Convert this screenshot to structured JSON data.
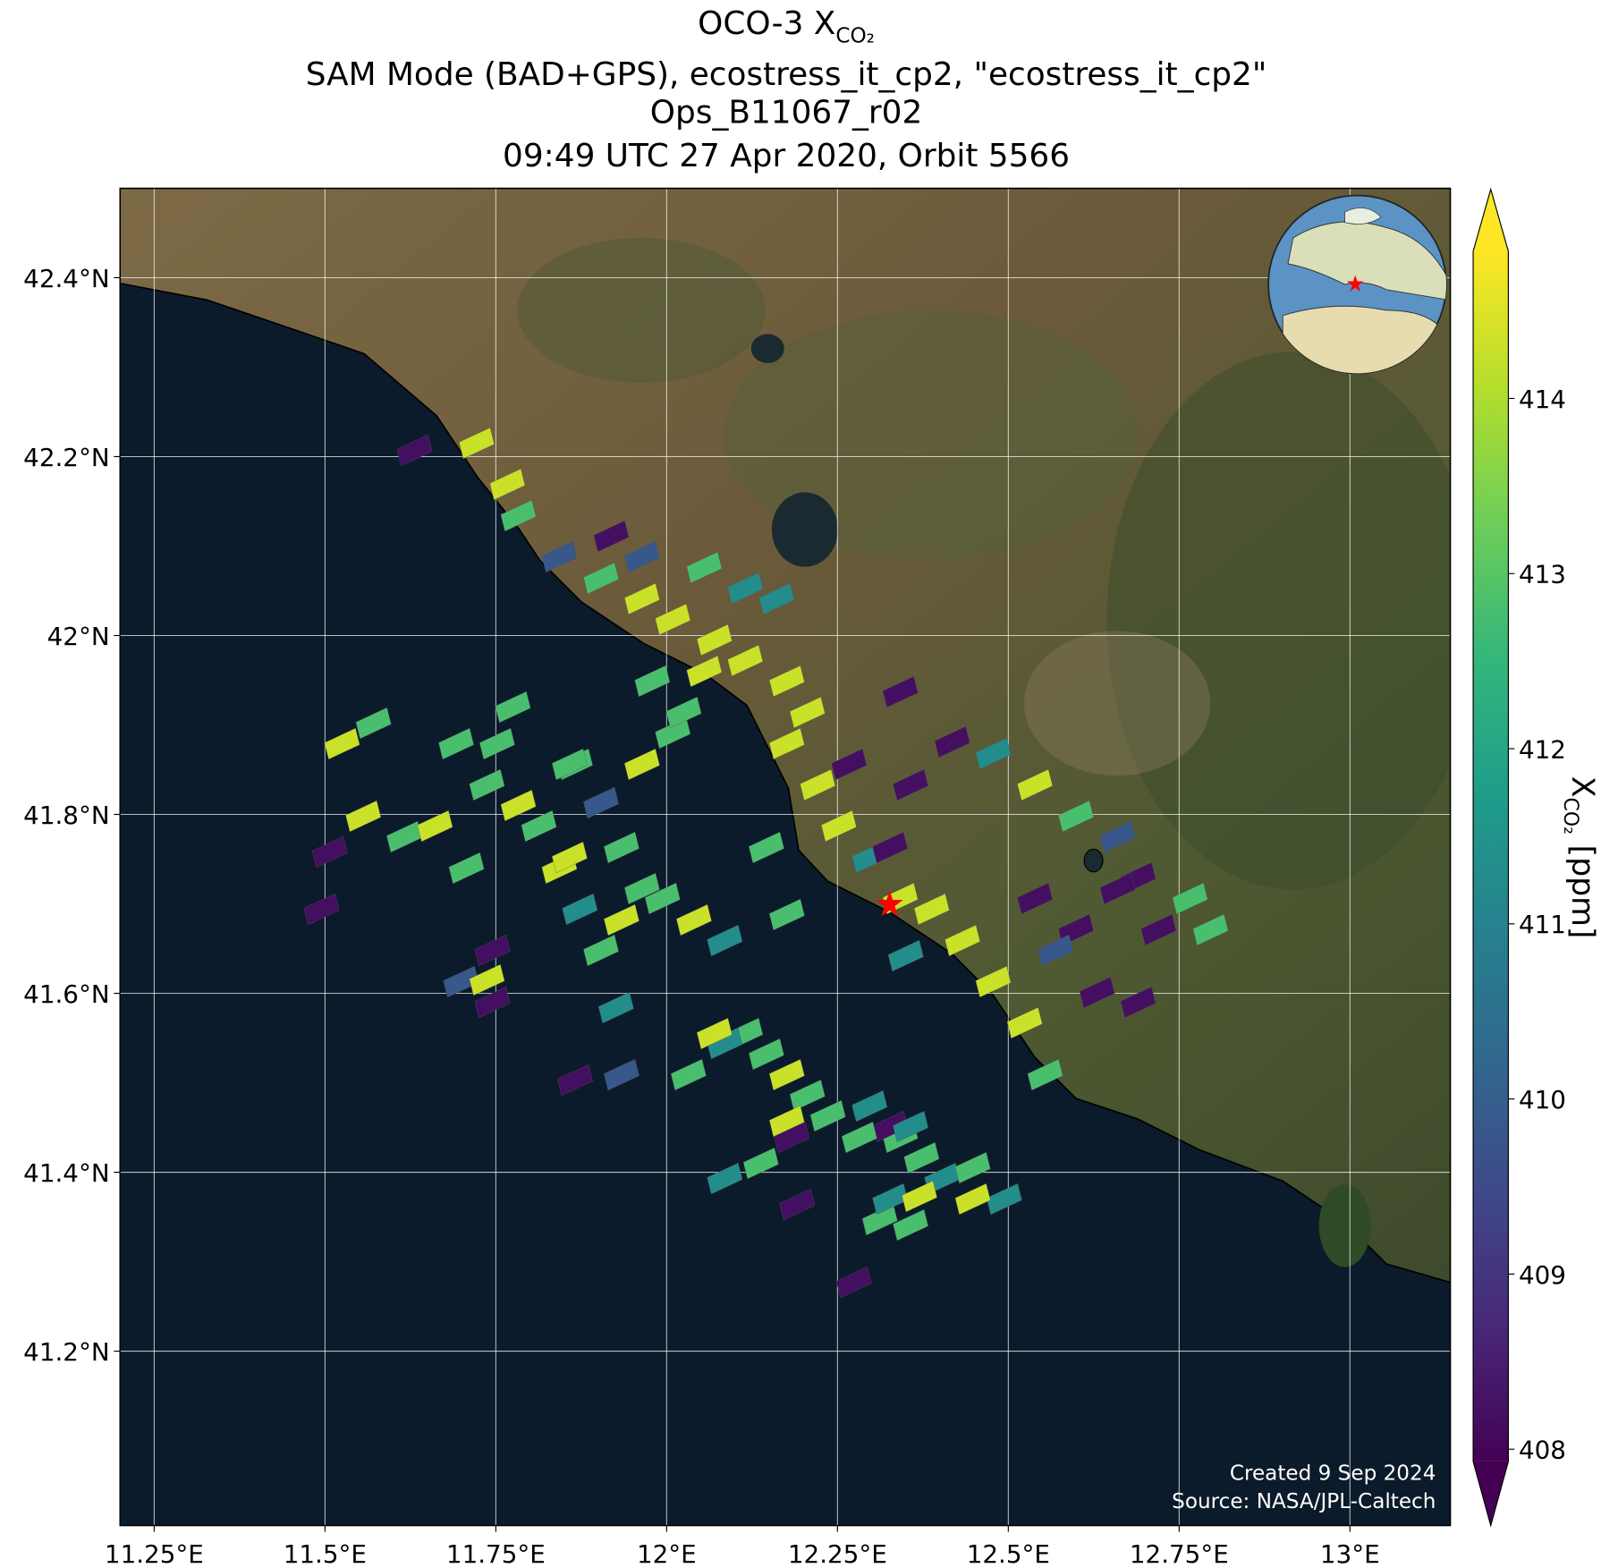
{
  "map": {
    "title": {
      "text": "OCO-3 X",
      "sub": "CO₂"
    },
    "subtitles": [
      "SAM Mode (BAD+GPS), ecostress_it_cp2, \"ecostress_it_cp2\"",
      "Ops_B11067_r02",
      "09:49 UTC 27 Apr 2020, Orbit 5566"
    ],
    "xlim": [
      11.2,
      13.147
    ],
    "ylim": [
      41.005,
      42.5
    ],
    "xticks": [
      {
        "value": 11.25,
        "label": "11.25°E"
      },
      {
        "value": 11.5,
        "label": "11.5°E"
      },
      {
        "value": 11.75,
        "label": "11.75°E"
      },
      {
        "value": 12,
        "label": "12°E"
      },
      {
        "value": 12.25,
        "label": "12.25°E"
      },
      {
        "value": 12.5,
        "label": "12.5°E"
      },
      {
        "value": 12.75,
        "label": "12.75°E"
      },
      {
        "value": 13,
        "label": "13°E"
      }
    ],
    "yticks": [
      {
        "value": 41.2,
        "label": "41.2°N"
      },
      {
        "value": 41.4,
        "label": "41.4°N"
      },
      {
        "value": 41.6,
        "label": "41.6°N"
      },
      {
        "value": 41.8,
        "label": "41.8°N"
      },
      {
        "value": 42,
        "label": "42°N"
      },
      {
        "value": 42.2,
        "label": "42.2°N"
      },
      {
        "value": 42.4,
        "label": "42.4°N"
      }
    ],
    "grid": true,
    "colorbar": {
      "label": "X",
      "label_sub": "CO₂",
      "label_unit": "[ppm]",
      "clim": [
        407.93,
        414.84
      ],
      "ticks": [
        408,
        409,
        410,
        411,
        412,
        413,
        414
      ],
      "extend": "both",
      "colormap": "viridis"
    },
    "credits": [
      "Created 9 Sep 2024",
      "Source: NASA/JPL-Caltech"
    ],
    "soundings": [
      [
        11.631,
        42.207,
        408.2
      ],
      [
        11.722,
        42.215,
        414.3
      ],
      [
        11.767,
        42.169,
        414.3
      ],
      [
        11.783,
        42.134,
        412.8
      ],
      [
        11.843,
        42.088,
        409.8
      ],
      [
        11.904,
        42.064,
        412.8
      ],
      [
        11.964,
        42.041,
        414.3
      ],
      [
        12.009,
        42.018,
        414.3
      ],
      [
        12.07,
        41.995,
        414.3
      ],
      [
        12.115,
        41.972,
        414.3
      ],
      [
        12.176,
        41.949,
        414.3
      ],
      [
        12.206,
        41.914,
        414.3
      ],
      [
        12.176,
        41.879,
        414.3
      ],
      [
        12.221,
        41.833,
        414.3
      ],
      [
        12.252,
        41.787,
        414.3
      ],
      [
        12.297,
        41.752,
        411.3
      ],
      [
        12.342,
        41.706,
        414.3
      ],
      [
        12.388,
        41.694,
        414.3
      ],
      [
        12.433,
        41.659,
        414.3
      ],
      [
        12.478,
        41.613,
        414.3
      ],
      [
        12.524,
        41.567,
        414.3
      ],
      [
        12.554,
        41.509,
        412.8
      ],
      [
        11.919,
        42.111,
        408.2
      ],
      [
        11.964,
        42.088,
        409.8
      ],
      [
        12.055,
        42.076,
        412.8
      ],
      [
        12.115,
        42.053,
        411.3
      ],
      [
        12.161,
        42.041,
        411.3
      ],
      [
        12.342,
        41.937,
        408.2
      ],
      [
        12.418,
        41.881,
        408.2
      ],
      [
        12.267,
        41.856,
        408.2
      ],
      [
        12.357,
        41.833,
        408.2
      ],
      [
        12.327,
        41.763,
        408.2
      ],
      [
        12.539,
        41.706,
        408.2
      ],
      [
        12.599,
        41.671,
        408.2
      ],
      [
        12.63,
        41.601,
        408.2
      ],
      [
        12.69,
        41.59,
        408.2
      ],
      [
        12.569,
        41.648,
        409.8
      ],
      [
        12.478,
        41.868,
        411.3
      ],
      [
        12.539,
        41.833,
        414.3
      ],
      [
        12.599,
        41.798,
        412.8
      ],
      [
        12.66,
        41.775,
        409.8
      ],
      [
        12.69,
        41.729,
        408.2
      ],
      [
        12.766,
        41.706,
        412.8
      ],
      [
        12.796,
        41.671,
        412.8
      ],
      [
        12.72,
        41.671,
        408.2
      ],
      [
        12.66,
        41.717,
        408.2
      ],
      [
        11.525,
        41.879,
        414.3
      ],
      [
        11.571,
        41.902,
        412.8
      ],
      [
        11.556,
        41.798,
        414.3
      ],
      [
        11.616,
        41.775,
        412.8
      ],
      [
        11.661,
        41.787,
        414.3
      ],
      [
        11.707,
        41.74,
        412.8
      ],
      [
        11.737,
        41.833,
        412.8
      ],
      [
        11.783,
        41.81,
        414.3
      ],
      [
        11.692,
        41.879,
        412.8
      ],
      [
        11.752,
        41.879,
        412.8
      ],
      [
        11.813,
        41.787,
        412.8
      ],
      [
        11.843,
        41.74,
        414.3
      ],
      [
        11.873,
        41.694,
        411.3
      ],
      [
        11.904,
        41.648,
        412.8
      ],
      [
        11.934,
        41.682,
        414.3
      ],
      [
        11.964,
        41.717,
        412.8
      ],
      [
        11.858,
        41.752,
        414.3
      ],
      [
        11.934,
        41.763,
        412.8
      ],
      [
        11.994,
        41.706,
        412.8
      ],
      [
        12.04,
        41.682,
        414.3
      ],
      [
        12.085,
        41.659,
        411.3
      ],
      [
        11.775,
        41.92,
        412.8
      ],
      [
        11.866,
        41.856,
        412.8
      ],
      [
        11.904,
        41.813,
        409.8
      ],
      [
        11.964,
        41.856,
        414.3
      ],
      [
        12.009,
        41.891,
        412.8
      ],
      [
        12.025,
        41.914,
        412.8
      ],
      [
        11.979,
        41.949,
        412.8
      ],
      [
        12.055,
        41.96,
        414.3
      ],
      [
        11.507,
        41.758,
        408.2
      ],
      [
        11.495,
        41.694,
        408.2
      ],
      [
        11.745,
        41.648,
        408.2
      ],
      [
        11.699,
        41.613,
        409.8
      ],
      [
        11.737,
        41.615,
        414.3
      ],
      [
        11.745,
        41.59,
        408.2
      ],
      [
        12.115,
        41.555,
        412.8
      ],
      [
        12.146,
        41.532,
        412.8
      ],
      [
        12.176,
        41.509,
        414.3
      ],
      [
        12.206,
        41.486,
        412.8
      ],
      [
        12.236,
        41.463,
        412.8
      ],
      [
        12.297,
        41.474,
        411.3
      ],
      [
        12.342,
        41.439,
        412.8
      ],
      [
        12.373,
        41.416,
        412.8
      ],
      [
        12.403,
        41.393,
        411.3
      ],
      [
        12.448,
        41.405,
        412.8
      ],
      [
        12.494,
        41.37,
        411.3
      ],
      [
        12.448,
        41.37,
        414.3
      ],
      [
        12.327,
        41.451,
        408.2
      ],
      [
        12.085,
        41.544,
        411.3
      ],
      [
        12.032,
        41.509,
        412.8
      ],
      [
        12.07,
        41.555,
        414.3
      ],
      [
        12.176,
        41.457,
        414.3
      ],
      [
        12.282,
        41.439,
        412.8
      ],
      [
        12.312,
        41.347,
        412.8
      ],
      [
        12.357,
        41.451,
        411.3
      ],
      [
        11.866,
        41.503,
        408.2
      ],
      [
        11.934,
        41.509,
        409.8
      ],
      [
        11.926,
        41.584,
        411.3
      ],
      [
        11.858,
        41.856,
        412.8
      ],
      [
        12.085,
        41.393,
        411.3
      ],
      [
        12.138,
        41.41,
        412.8
      ],
      [
        12.183,
        41.439,
        408.2
      ],
      [
        12.191,
        41.364,
        408.2
      ],
      [
        12.327,
        41.37,
        411.3
      ],
      [
        12.37,
        41.373,
        414.3
      ],
      [
        12.357,
        41.341,
        412.8
      ],
      [
        12.274,
        41.277,
        408.2
      ],
      [
        12.35,
        41.642,
        411.3
      ],
      [
        12.176,
        41.688,
        412.8
      ],
      [
        12.146,
        41.763,
        412.8
      ]
    ]
  }
}
